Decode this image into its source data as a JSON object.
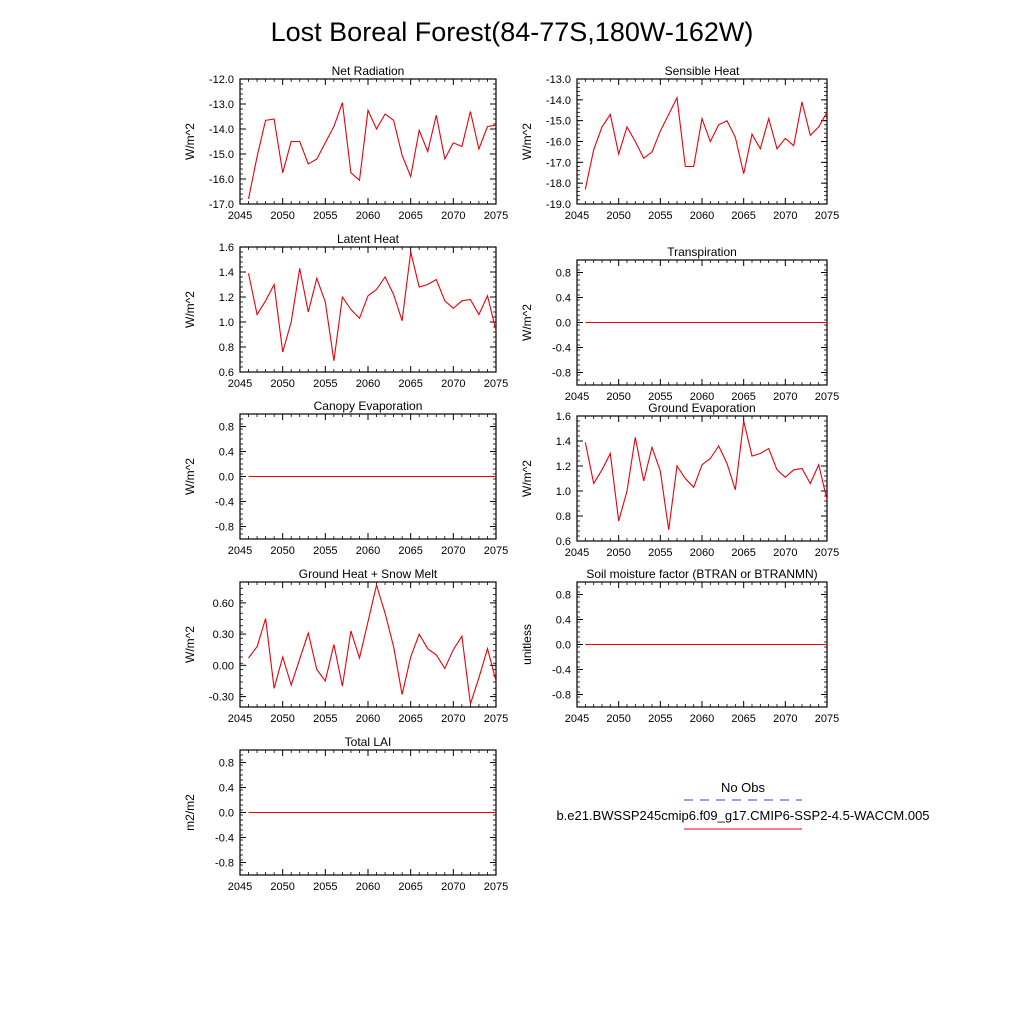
{
  "figure": {
    "title": "Lost Boreal Forest(84-77S,180W-162W)",
    "colors": {
      "line": "#e8000b",
      "axis": "#000000",
      "obs": "#3b3bd6",
      "background": "#ffffff"
    }
  },
  "legend": {
    "obs_label": "No Obs",
    "model_label": "b.e21.BWSSP245cmip6.f09_g17.CMIP6-SSP2-4.5-WACCM.005"
  },
  "chart_data": [
    {
      "type": "line",
      "title": "Net Radiation",
      "xlabel": "",
      "ylabel": "W/m^2",
      "xlim": [
        2045,
        2075
      ],
      "ylim": [
        -17.0,
        -12.0
      ],
      "xticks": [
        "2045",
        "2050",
        "2055",
        "2060",
        "2065",
        "2070",
        "2075"
      ],
      "yticks": [
        "-17.0",
        "-16.0",
        "-15.0",
        "-14.0",
        "-13.0",
        "-12.0"
      ],
      "x": [
        2046,
        2047,
        2048,
        2049,
        2050,
        2051,
        2052,
        2053,
        2054,
        2055,
        2056,
        2057,
        2058,
        2059,
        2060,
        2061,
        2062,
        2063,
        2064,
        2065,
        2066,
        2067,
        2068,
        2069,
        2070,
        2071,
        2072,
        2073,
        2074,
        2075
      ],
      "values": [
        -16.8,
        -15.1,
        -13.65,
        -13.6,
        -15.75,
        -14.5,
        -14.5,
        -15.4,
        -15.2,
        -14.55,
        -13.9,
        -12.95,
        -15.75,
        -16.05,
        -13.25,
        -14.0,
        -13.4,
        -13.65,
        -15.05,
        -15.9,
        -14.05,
        -14.9,
        -13.45,
        -15.2,
        -14.55,
        -14.7,
        -13.3,
        -14.8,
        -13.9,
        -13.85
      ]
    },
    {
      "type": "line",
      "title": "Sensible Heat",
      "xlabel": "",
      "ylabel": "W/m^2",
      "xlim": [
        2045,
        2075
      ],
      "ylim": [
        -19.0,
        -13.0
      ],
      "xticks": [
        "2045",
        "2050",
        "2055",
        "2060",
        "2065",
        "2070",
        "2075"
      ],
      "yticks": [
        "-19.0",
        "-18.0",
        "-17.0",
        "-16.0",
        "-15.0",
        "-14.0",
        "-13.0"
      ],
      "x": [
        2046,
        2047,
        2048,
        2049,
        2050,
        2051,
        2052,
        2053,
        2054,
        2055,
        2056,
        2057,
        2058,
        2059,
        2060,
        2061,
        2062,
        2063,
        2064,
        2065,
        2066,
        2067,
        2068,
        2069,
        2070,
        2071,
        2072,
        2073,
        2074,
        2075
      ],
      "values": [
        -18.3,
        -16.4,
        -15.3,
        -14.7,
        -16.6,
        -15.3,
        -16.0,
        -16.8,
        -16.5,
        -15.5,
        -14.7,
        -13.9,
        -17.2,
        -17.2,
        -14.9,
        -16.0,
        -15.2,
        -15.0,
        -15.8,
        -17.55,
        -15.65,
        -16.35,
        -14.9,
        -16.35,
        -15.85,
        -16.2,
        -14.1,
        -15.7,
        -15.3,
        -14.6
      ]
    },
    {
      "type": "line",
      "title": "Latent Heat",
      "xlabel": "",
      "ylabel": "W/m^2",
      "xlim": [
        2045,
        2075
      ],
      "ylim": [
        0.6,
        1.6
      ],
      "xticks": [
        "2045",
        "2050",
        "2055",
        "2060",
        "2065",
        "2070",
        "2075"
      ],
      "yticks": [
        "0.6",
        "0.8",
        "1.0",
        "1.2",
        "1.4",
        "1.6"
      ],
      "x": [
        2046,
        2047,
        2048,
        2049,
        2050,
        2051,
        2052,
        2053,
        2054,
        2055,
        2056,
        2057,
        2058,
        2059,
        2060,
        2061,
        2062,
        2063,
        2064,
        2065,
        2066,
        2067,
        2068,
        2069,
        2070,
        2071,
        2072,
        2073,
        2074,
        2075
      ],
      "values": [
        1.39,
        1.06,
        1.17,
        1.3,
        0.76,
        1.0,
        1.43,
        1.08,
        1.35,
        1.16,
        0.69,
        1.2,
        1.1,
        1.03,
        1.21,
        1.26,
        1.36,
        1.22,
        1.01,
        1.56,
        1.28,
        1.3,
        1.34,
        1.17,
        1.11,
        1.17,
        1.18,
        1.06,
        1.21,
        0.93
      ]
    },
    {
      "type": "line",
      "title": "Transpiration",
      "xlabel": "",
      "ylabel": "W/m^2",
      "xlim": [
        2045,
        2075
      ],
      "ylim": [
        -1.0,
        1.0
      ],
      "xticks": [
        "2045",
        "2050",
        "2055",
        "2060",
        "2065",
        "2070",
        "2075"
      ],
      "yticks": [
        "-0.8",
        "-0.4",
        "0.0",
        "0.4",
        "0.8"
      ],
      "x": [
        2046,
        2075
      ],
      "values": [
        0.0,
        0.0
      ]
    },
    {
      "type": "line",
      "title": "Canopy Evaporation",
      "xlabel": "",
      "ylabel": "W/m^2",
      "xlim": [
        2045,
        2075
      ],
      "ylim": [
        -1.0,
        1.0
      ],
      "xticks": [
        "2045",
        "2050",
        "2055",
        "2060",
        "2065",
        "2070",
        "2075"
      ],
      "yticks": [
        "-0.8",
        "-0.4",
        "0.0",
        "0.4",
        "0.8"
      ],
      "x": [
        2046,
        2075
      ],
      "values": [
        0.0,
        0.0
      ]
    },
    {
      "type": "line",
      "title": "Ground Evaporation",
      "xlabel": "",
      "ylabel": "W/m^2",
      "xlim": [
        2045,
        2075
      ],
      "ylim": [
        0.6,
        1.6
      ],
      "xticks": [
        "2045",
        "2050",
        "2055",
        "2060",
        "2065",
        "2070",
        "2075"
      ],
      "yticks": [
        "0.6",
        "0.8",
        "1.0",
        "1.2",
        "1.4",
        "1.6"
      ],
      "x": [
        2046,
        2047,
        2048,
        2049,
        2050,
        2051,
        2052,
        2053,
        2054,
        2055,
        2056,
        2057,
        2058,
        2059,
        2060,
        2061,
        2062,
        2063,
        2064,
        2065,
        2066,
        2067,
        2068,
        2069,
        2070,
        2071,
        2072,
        2073,
        2074,
        2075
      ],
      "values": [
        1.39,
        1.06,
        1.17,
        1.3,
        0.76,
        1.0,
        1.43,
        1.08,
        1.35,
        1.16,
        0.69,
        1.2,
        1.1,
        1.03,
        1.21,
        1.26,
        1.36,
        1.22,
        1.01,
        1.56,
        1.28,
        1.3,
        1.34,
        1.17,
        1.11,
        1.17,
        1.18,
        1.06,
        1.21,
        0.93
      ]
    },
    {
      "type": "line",
      "title": "Ground Heat + Snow Melt",
      "xlabel": "",
      "ylabel": "W/m^2",
      "xlim": [
        2045,
        2075
      ],
      "ylim": [
        -0.4,
        0.8
      ],
      "xticks": [
        "2045",
        "2050",
        "2055",
        "2060",
        "2065",
        "2070",
        "2075"
      ],
      "yticks": [
        "-0.30",
        "0.00",
        "0.30",
        "0.60"
      ],
      "x": [
        2046,
        2047,
        2048,
        2049,
        2050,
        2051,
        2052,
        2053,
        2054,
        2055,
        2056,
        2057,
        2058,
        2059,
        2060,
        2061,
        2062,
        2063,
        2064,
        2065,
        2066,
        2067,
        2068,
        2069,
        2070,
        2071,
        2072,
        2073,
        2074,
        2075
      ],
      "values": [
        0.07,
        0.18,
        0.45,
        -0.22,
        0.08,
        -0.19,
        0.06,
        0.31,
        -0.04,
        -0.15,
        0.2,
        -0.2,
        0.33,
        0.07,
        0.42,
        0.77,
        0.5,
        0.18,
        -0.28,
        0.08,
        0.3,
        0.16,
        0.1,
        -0.03,
        0.15,
        0.28,
        -0.37,
        -0.12,
        0.16,
        -0.15
      ]
    },
    {
      "type": "line",
      "title": "Soil moisture factor (BTRAN or BTRANMN)",
      "xlabel": "",
      "ylabel": "unitless",
      "xlim": [
        2045,
        2075
      ],
      "ylim": [
        -1.0,
        1.0
      ],
      "xticks": [
        "2045",
        "2050",
        "2055",
        "2060",
        "2065",
        "2070",
        "2075"
      ],
      "yticks": [
        "-0.8",
        "-0.4",
        "0.0",
        "0.4",
        "0.8"
      ],
      "x": [
        2046,
        2075
      ],
      "values": [
        0.0,
        0.0
      ]
    },
    {
      "type": "line",
      "title": "Total LAI",
      "xlabel": "",
      "ylabel": "m2/m2",
      "xlim": [
        2045,
        2075
      ],
      "ylim": [
        -1.0,
        1.0
      ],
      "xticks": [
        "2045",
        "2050",
        "2055",
        "2060",
        "2065",
        "2070",
        "2075"
      ],
      "yticks": [
        "-0.8",
        "-0.4",
        "0.0",
        "0.4",
        "0.8"
      ],
      "x": [
        2046,
        2075
      ],
      "values": [
        0.0,
        0.0
      ]
    }
  ]
}
